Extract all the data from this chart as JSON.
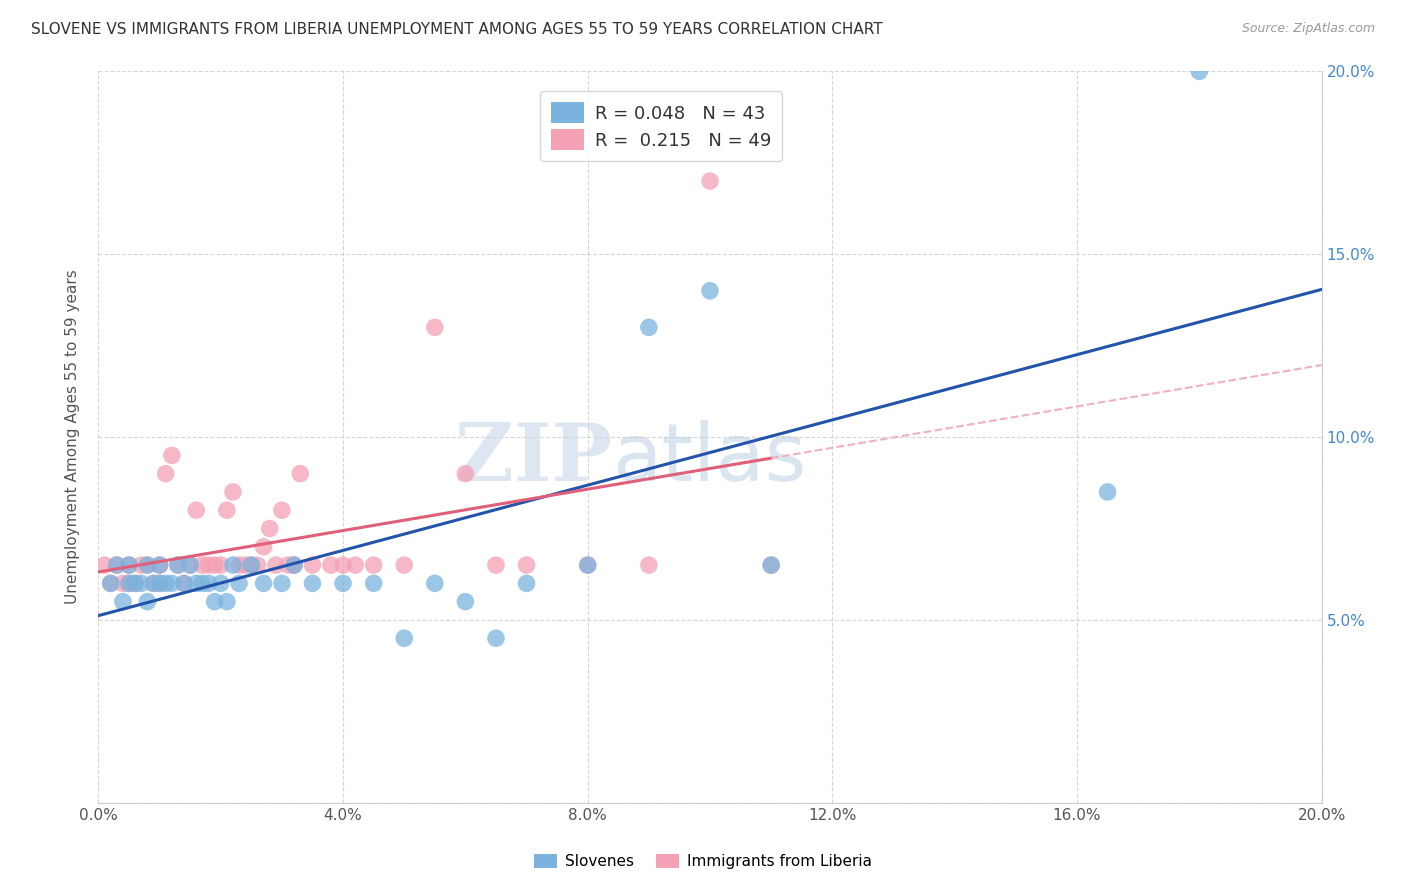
{
  "title": "SLOVENE VS IMMIGRANTS FROM LIBERIA UNEMPLOYMENT AMONG AGES 55 TO 59 YEARS CORRELATION CHART",
  "source": "Source: ZipAtlas.com",
  "ylabel": "Unemployment Among Ages 55 to 59 years",
  "xlim": [
    0.0,
    0.2
  ],
  "ylim": [
    0.0,
    0.2
  ],
  "xticks": [
    0.0,
    0.04,
    0.08,
    0.12,
    0.16,
    0.2
  ],
  "yticks": [
    0.0,
    0.05,
    0.1,
    0.15,
    0.2
  ],
  "blue_R": 0.048,
  "blue_N": 43,
  "pink_R": 0.215,
  "pink_N": 49,
  "blue_color": "#7ab3de",
  "pink_color": "#f4a0b5",
  "blue_line_color": "#2255aa",
  "pink_line_color": "#e0607a",
  "pink_dash_color": "#f0b0c0",
  "watermark_zip": "ZIP",
  "watermark_atlas": "atlas",
  "blue_scatter_x": [
    0.002,
    0.003,
    0.004,
    0.005,
    0.005,
    0.006,
    0.007,
    0.008,
    0.008,
    0.009,
    0.01,
    0.01,
    0.011,
    0.012,
    0.013,
    0.014,
    0.015,
    0.016,
    0.017,
    0.018,
    0.019,
    0.02,
    0.021,
    0.022,
    0.023,
    0.025,
    0.027,
    0.03,
    0.032,
    0.035,
    0.04,
    0.045,
    0.05,
    0.055,
    0.06,
    0.065,
    0.07,
    0.08,
    0.09,
    0.1,
    0.11,
    0.165,
    0.18
  ],
  "blue_scatter_y": [
    0.06,
    0.065,
    0.055,
    0.06,
    0.065,
    0.06,
    0.06,
    0.055,
    0.065,
    0.06,
    0.065,
    0.06,
    0.06,
    0.06,
    0.065,
    0.06,
    0.065,
    0.06,
    0.06,
    0.06,
    0.055,
    0.06,
    0.055,
    0.065,
    0.06,
    0.065,
    0.06,
    0.06,
    0.065,
    0.06,
    0.06,
    0.06,
    0.045,
    0.06,
    0.055,
    0.045,
    0.06,
    0.065,
    0.13,
    0.14,
    0.065,
    0.085,
    0.2
  ],
  "pink_scatter_x": [
    0.001,
    0.002,
    0.003,
    0.004,
    0.005,
    0.005,
    0.006,
    0.007,
    0.008,
    0.009,
    0.01,
    0.01,
    0.011,
    0.012,
    0.013,
    0.014,
    0.015,
    0.016,
    0.017,
    0.018,
    0.019,
    0.02,
    0.021,
    0.022,
    0.023,
    0.024,
    0.025,
    0.026,
    0.027,
    0.028,
    0.029,
    0.03,
    0.031,
    0.032,
    0.033,
    0.035,
    0.038,
    0.04,
    0.042,
    0.045,
    0.05,
    0.055,
    0.06,
    0.065,
    0.07,
    0.08,
    0.09,
    0.1,
    0.11
  ],
  "pink_scatter_y": [
    0.065,
    0.06,
    0.065,
    0.06,
    0.06,
    0.065,
    0.06,
    0.065,
    0.065,
    0.06,
    0.065,
    0.06,
    0.09,
    0.095,
    0.065,
    0.06,
    0.065,
    0.08,
    0.065,
    0.065,
    0.065,
    0.065,
    0.08,
    0.085,
    0.065,
    0.065,
    0.065,
    0.065,
    0.07,
    0.075,
    0.065,
    0.08,
    0.065,
    0.065,
    0.09,
    0.065,
    0.065,
    0.065,
    0.065,
    0.065,
    0.065,
    0.13,
    0.09,
    0.065,
    0.065,
    0.065,
    0.065,
    0.17,
    0.065
  ],
  "background_color": "#ffffff",
  "grid_color": "#cccccc"
}
